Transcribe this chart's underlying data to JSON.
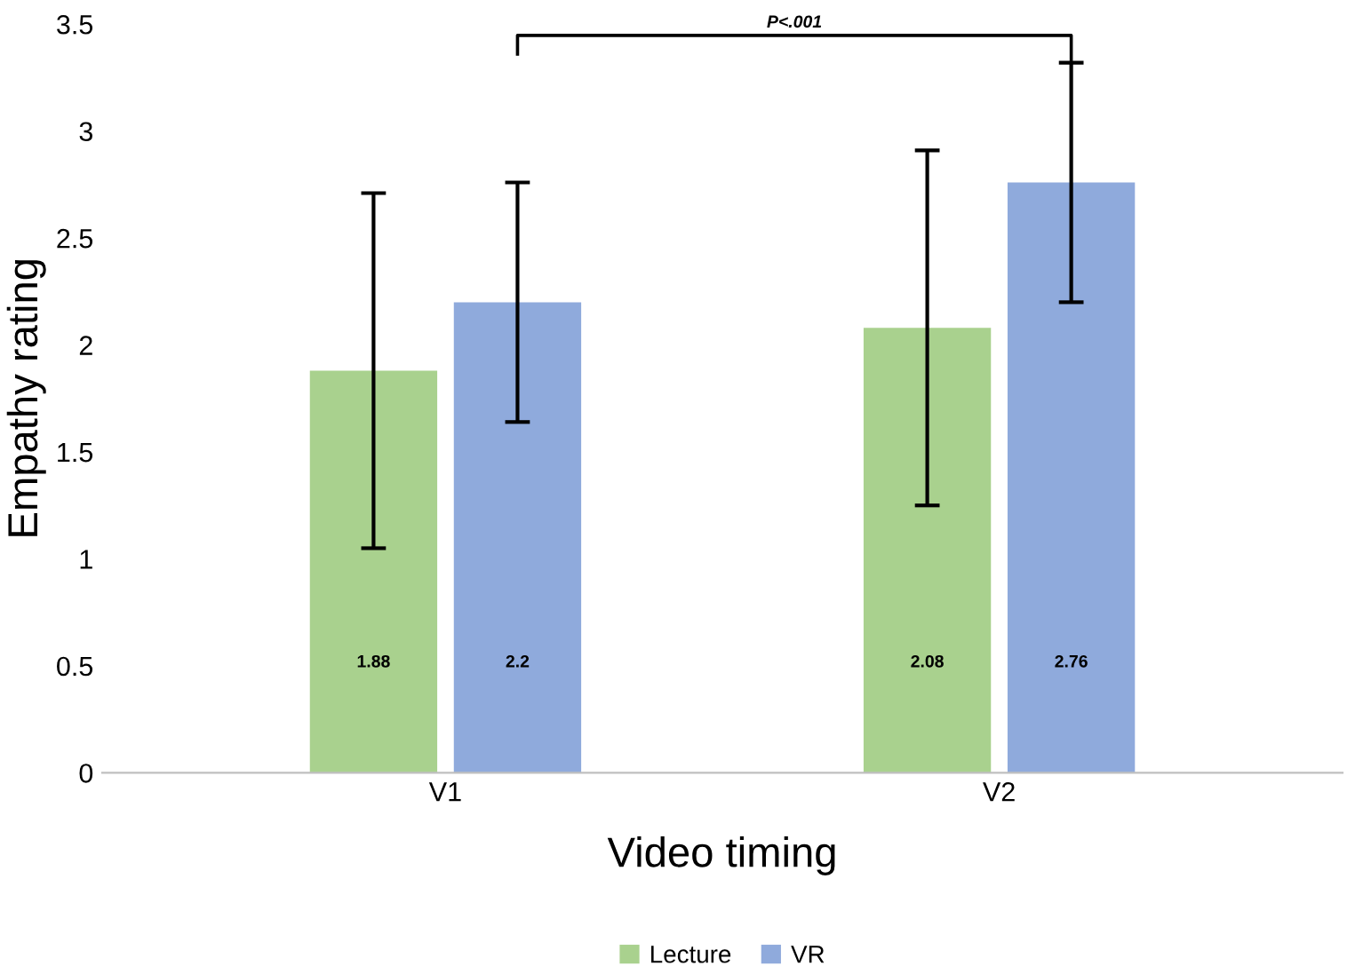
{
  "chart_data": {
    "type": "bar",
    "xlabel": "Video timing",
    "ylabel": "Empathy rating",
    "categories": [
      "V1",
      "V2"
    ],
    "series": [
      {
        "name": "Lecture",
        "color": "#a9d18e",
        "values": [
          1.88,
          2.08
        ],
        "errors": [
          0.83,
          0.83
        ]
      },
      {
        "name": "VR",
        "color": "#8faadc",
        "values": [
          2.2,
          2.76
        ],
        "errors": [
          0.56,
          0.56
        ]
      }
    ],
    "ylim": [
      0,
      3.5
    ],
    "yticks": [
      0,
      0.5,
      1,
      1.5,
      2,
      2.5,
      3,
      3.5
    ],
    "annotations": [
      "P<.001"
    ],
    "data_labels": true,
    "grid": false,
    "legend": "bottom"
  }
}
